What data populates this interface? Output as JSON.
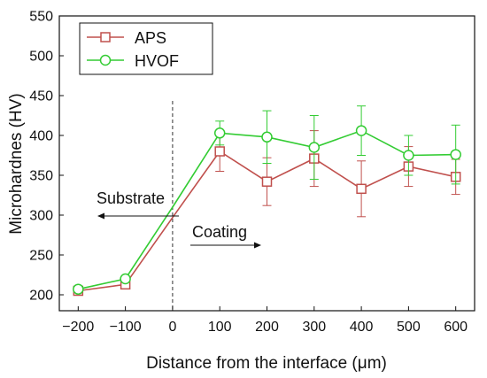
{
  "chart_data": {
    "type": "line",
    "title": "",
    "xlabel": "Distance from the interface (μm)",
    "ylabel": "Microhardnes (HV)",
    "xlim": [
      -240,
      640
    ],
    "ylim": [
      180,
      550
    ],
    "xticks": [
      -200,
      -100,
      0,
      100,
      200,
      300,
      400,
      500,
      600
    ],
    "xtick_labels": [
      "−200",
      "−100",
      "0",
      "100",
      "200",
      "300",
      "400",
      "500",
      "600"
    ],
    "yticks": [
      200,
      250,
      300,
      350,
      400,
      450,
      500,
      550
    ],
    "grid": false,
    "legend_position": "top-left",
    "series": [
      {
        "name": "APS",
        "color": "#c0504d",
        "marker": "square",
        "x": [
          -200,
          -100,
          0,
          100,
          200,
          300,
          400,
          500,
          600
        ],
        "y": [
          205,
          213,
          297,
          380,
          342,
          371,
          333,
          361,
          348
        ],
        "err": [
          3,
          3,
          null,
          25,
          30,
          35,
          35,
          25,
          22
        ]
      },
      {
        "name": "HVOF",
        "color": "#33cc33",
        "marker": "circle",
        "x": [
          -200,
          -100,
          0,
          100,
          200,
          300,
          400,
          500,
          600
        ],
        "y": [
          207,
          220,
          310,
          403,
          398,
          385,
          406,
          375,
          376
        ],
        "err": [
          3,
          3,
          null,
          15,
          33,
          40,
          31,
          25,
          37
        ]
      }
    ],
    "annotations": [
      {
        "text": "Substrate",
        "arrow": "left"
      },
      {
        "text": "Coating",
        "arrow": "right"
      }
    ],
    "interface_line_x": 0
  }
}
